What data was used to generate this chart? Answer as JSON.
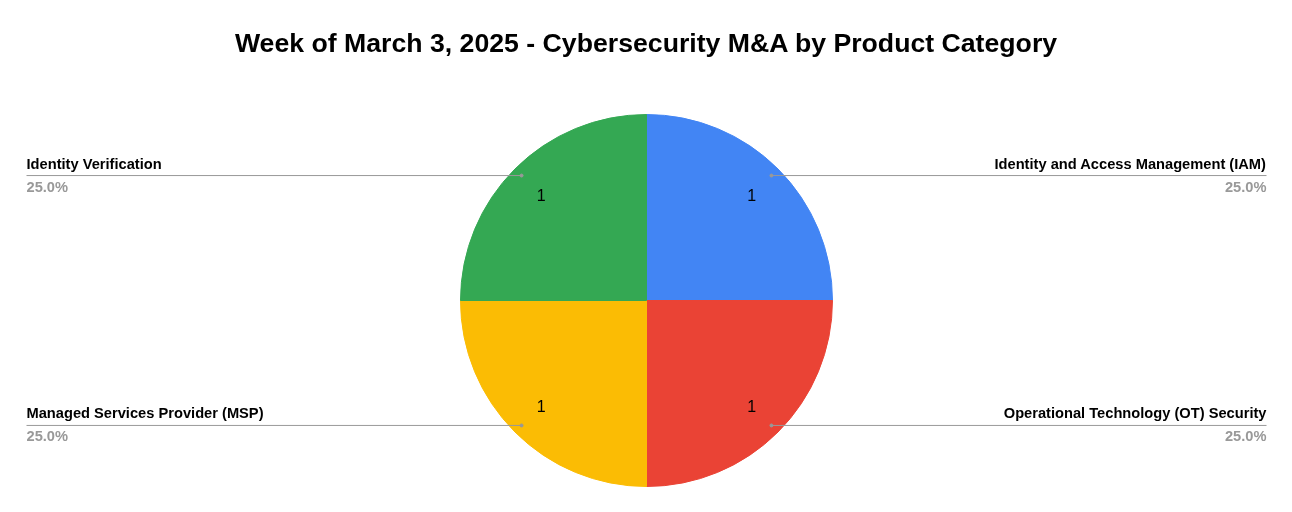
{
  "chart_data": {
    "type": "pie",
    "title": "Week of March 3, 2025 - Cybersecurity M&A by Product Category",
    "categories": [
      "Identity and Access Management (IAM)",
      "Operational Technology (OT) Security",
      "Managed Services Provider (MSP)",
      "Identity Verification"
    ],
    "values": [
      25,
      25,
      25,
      25
    ],
    "annotations": [
      "1",
      "1",
      "1",
      "1"
    ],
    "colors": [
      "#4285f4",
      "#ea4335",
      "#fbbc04",
      "#34a853"
    ],
    "value_labels": [
      "25.0%",
      "25.0%",
      "25.0%",
      "25.0%"
    ]
  }
}
